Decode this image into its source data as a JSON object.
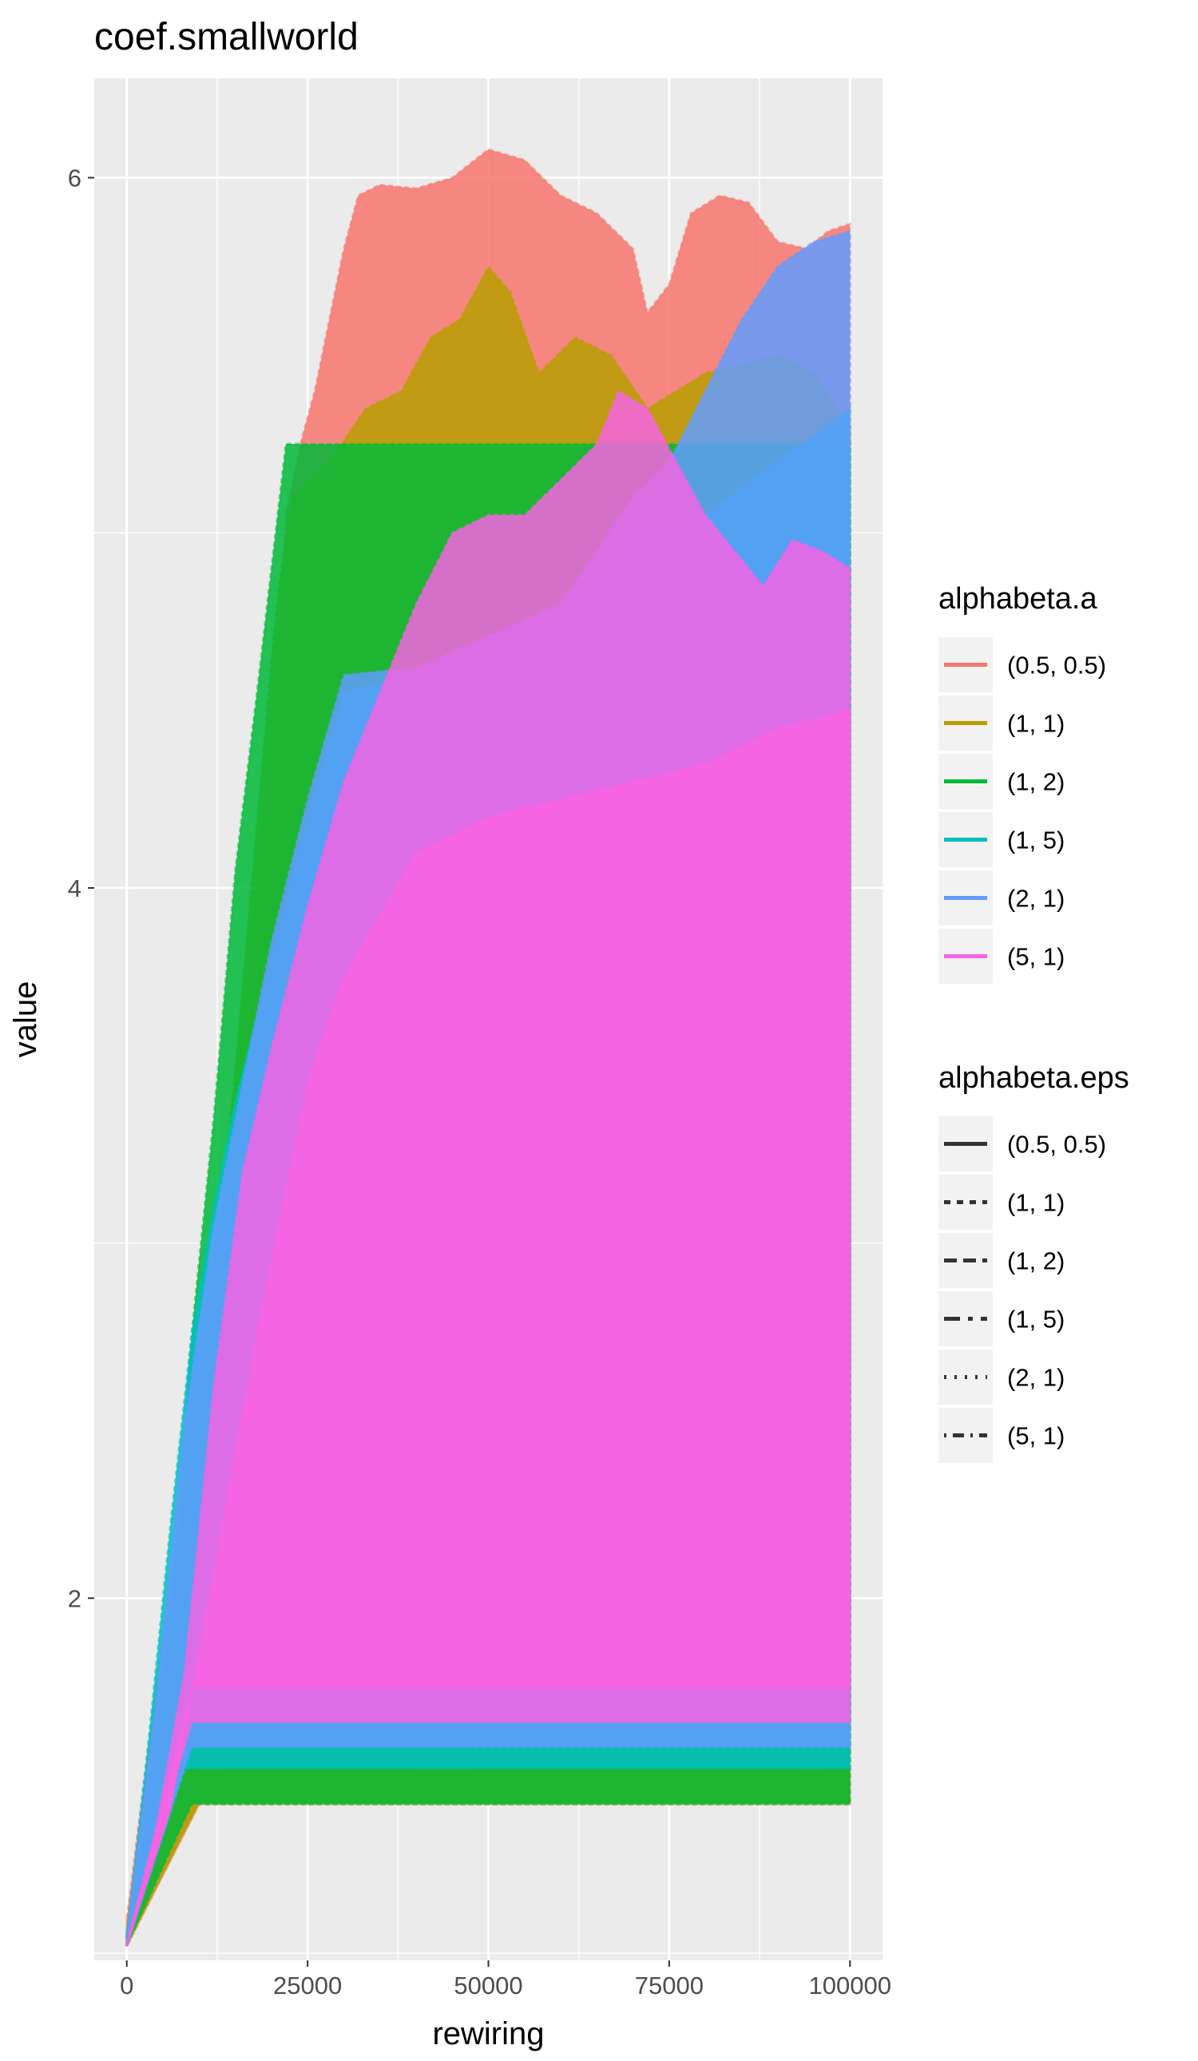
{
  "chart_data": {
    "type": "area",
    "title": "coef.smallworld",
    "xlabel": "rewiring",
    "ylabel": "value",
    "xlim": [
      -4500,
      104500
    ],
    "ylim": [
      0.98,
      6.28
    ],
    "x_ticks": [
      0,
      25000,
      50000,
      75000,
      100000
    ],
    "x_tick_labels": [
      "0",
      "25000",
      "50000",
      "75000",
      "100000"
    ],
    "y_ticks": [
      2,
      4,
      6
    ],
    "y_tick_labels": [
      "2",
      "4",
      "6"
    ],
    "grid": true,
    "legend_position": "right",
    "legends": [
      {
        "title": "alphabeta.a",
        "kind": "color",
        "entries": [
          {
            "label": "(0.5, 0.5)",
            "color": "#F8766D"
          },
          {
            "label": "(1, 1)",
            "color": "#B79F00"
          },
          {
            "label": "(1, 2)",
            "color": "#00BA38"
          },
          {
            "label": "(1, 5)",
            "color": "#00BFC4"
          },
          {
            "label": "(2, 1)",
            "color": "#619CFF"
          },
          {
            "label": "(5, 1)",
            "color": "#F564E3"
          }
        ]
      },
      {
        "title": "alphabeta.eps",
        "kind": "linetype",
        "entries": [
          {
            "label": "(0.5, 0.5)",
            "dash": "solid"
          },
          {
            "label": "(1, 1)",
            "dash": "8,8"
          },
          {
            "label": "(1, 2)",
            "dash": "16,8"
          },
          {
            "label": "(1, 5)",
            "dash": "20,10,6,10"
          },
          {
            "label": "(2, 1)",
            "dash": "3,10"
          },
          {
            "label": "(5, 1)",
            "dash": "3,8,14,8"
          }
        ]
      }
    ],
    "series": [
      {
        "color": "#F8766D",
        "opacity": 0.85,
        "upper": [
          [
            0,
            1.1
          ],
          [
            5000,
            1.9
          ],
          [
            10000,
            2.6
          ],
          [
            15000,
            3.4
          ],
          [
            20000,
            4.4
          ],
          [
            22000,
            5.05
          ],
          [
            24000,
            5.25
          ],
          [
            26000,
            5.4
          ],
          [
            28000,
            5.6
          ],
          [
            30000,
            5.8
          ],
          [
            32000,
            5.95
          ],
          [
            35000,
            5.98
          ],
          [
            40000,
            5.97
          ],
          [
            45000,
            6.0
          ],
          [
            50000,
            6.08
          ],
          [
            55000,
            6.05
          ],
          [
            60000,
            5.95
          ],
          [
            65000,
            5.9
          ],
          [
            70000,
            5.8
          ],
          [
            72000,
            5.62
          ],
          [
            75000,
            5.7
          ],
          [
            78000,
            5.9
          ],
          [
            82000,
            5.95
          ],
          [
            86000,
            5.93
          ],
          [
            90000,
            5.82
          ],
          [
            94000,
            5.8
          ],
          [
            97000,
            5.85
          ],
          [
            100000,
            5.87
          ]
        ],
        "lower": [
          [
            0,
            1.02
          ],
          [
            10000,
            1.42
          ],
          [
            100000,
            1.42
          ]
        ]
      },
      {
        "color": "#B79F00",
        "opacity": 0.85,
        "upper": [
          [
            0,
            1.08
          ],
          [
            10000,
            2.4
          ],
          [
            15000,
            3.5
          ],
          [
            20000,
            4.65
          ],
          [
            21000,
            4.85
          ],
          [
            23000,
            5.1
          ],
          [
            28000,
            5.2
          ],
          [
            33000,
            5.35
          ],
          [
            38000,
            5.4
          ],
          [
            42000,
            5.55
          ],
          [
            46000,
            5.6
          ],
          [
            50000,
            5.75
          ],
          [
            53000,
            5.68
          ],
          [
            57000,
            5.45
          ],
          [
            62000,
            5.55
          ],
          [
            67000,
            5.5
          ],
          [
            72000,
            5.35
          ],
          [
            76000,
            5.4
          ],
          [
            80000,
            5.45
          ],
          [
            85000,
            5.47
          ],
          [
            90000,
            5.5
          ],
          [
            95000,
            5.45
          ],
          [
            100000,
            5.3
          ]
        ],
        "lower": [
          [
            0,
            1.02
          ],
          [
            10000,
            1.42
          ],
          [
            100000,
            1.42
          ]
        ]
      },
      {
        "color": "#00BA38",
        "opacity": 0.85,
        "upper": [
          [
            0,
            1.05
          ],
          [
            3000,
            1.4
          ],
          [
            6000,
            1.95
          ],
          [
            9000,
            2.75
          ],
          [
            12000,
            3.35
          ],
          [
            15000,
            4.05
          ],
          [
            18000,
            4.55
          ],
          [
            22000,
            5.25
          ],
          [
            100000,
            5.25
          ]
        ],
        "lower": [
          [
            0,
            1.02
          ],
          [
            9000,
            1.42
          ],
          [
            100000,
            1.42
          ]
        ]
      },
      {
        "color": "#00BFC4",
        "opacity": 0.85,
        "upper": [
          [
            0,
            1.05
          ],
          [
            3000,
            1.6
          ],
          [
            6000,
            2.2
          ],
          [
            9000,
            2.75
          ],
          [
            12000,
            3.1
          ],
          [
            15000,
            3.4
          ],
          [
            20000,
            3.8
          ],
          [
            25000,
            4.2
          ],
          [
            30000,
            4.55
          ],
          [
            40000,
            4.6
          ],
          [
            60000,
            4.75
          ],
          [
            70000,
            5.0
          ],
          [
            80000,
            5.05
          ],
          [
            90000,
            5.2
          ],
          [
            100000,
            5.35
          ]
        ],
        "lower": [
          [
            0,
            1.02
          ],
          [
            8000,
            1.52
          ],
          [
            100000,
            1.52
          ]
        ]
      },
      {
        "color": "#619CFF",
        "opacity": 0.85,
        "upper": [
          [
            0,
            1.06
          ],
          [
            4000,
            1.7
          ],
          [
            8000,
            2.5
          ],
          [
            12000,
            3.05
          ],
          [
            16000,
            3.45
          ],
          [
            20000,
            3.85
          ],
          [
            25000,
            4.25
          ],
          [
            30000,
            4.6
          ],
          [
            40000,
            4.62
          ],
          [
            60000,
            4.8
          ],
          [
            70000,
            5.1
          ],
          [
            75000,
            5.2
          ],
          [
            80000,
            5.4
          ],
          [
            85000,
            5.6
          ],
          [
            90000,
            5.75
          ],
          [
            95000,
            5.82
          ],
          [
            100000,
            5.85
          ]
        ],
        "lower": [
          [
            0,
            1.02
          ],
          [
            9000,
            1.58
          ],
          [
            100000,
            1.58
          ]
        ]
      },
      {
        "color": "#F564E3",
        "opacity": 0.85,
        "upper": [
          [
            0,
            1.03
          ],
          [
            4000,
            1.35
          ],
          [
            8000,
            1.8
          ],
          [
            12000,
            2.6
          ],
          [
            16000,
            3.2
          ],
          [
            20000,
            3.55
          ],
          [
            25000,
            3.95
          ],
          [
            30000,
            4.3
          ],
          [
            35000,
            4.55
          ],
          [
            40000,
            4.8
          ],
          [
            45000,
            5.0
          ],
          [
            50000,
            5.05
          ],
          [
            55000,
            5.05
          ],
          [
            60000,
            5.15
          ],
          [
            65000,
            5.25
          ],
          [
            68000,
            5.4
          ],
          [
            72000,
            5.35
          ],
          [
            76000,
            5.2
          ],
          [
            80000,
            5.05
          ],
          [
            84000,
            4.95
          ],
          [
            88000,
            4.85
          ],
          [
            92000,
            4.98
          ],
          [
            96000,
            4.95
          ],
          [
            100000,
            4.9
          ]
        ],
        "lower": [
          [
            0,
            1.02
          ],
          [
            9000,
            1.65
          ],
          [
            100000,
            1.65
          ]
        ]
      },
      {
        "color": "#F564E3",
        "opacity": 1.0,
        "upper": [
          [
            0,
            1.02
          ],
          [
            6000,
            1.4
          ],
          [
            10000,
            1.85
          ],
          [
            14000,
            2.3
          ],
          [
            18000,
            2.75
          ],
          [
            25000,
            3.45
          ],
          [
            30000,
            3.75
          ],
          [
            40000,
            4.1
          ],
          [
            50000,
            4.2
          ],
          [
            60000,
            4.25
          ],
          [
            70000,
            4.3
          ],
          [
            80000,
            4.35
          ],
          [
            90000,
            4.45
          ],
          [
            100000,
            4.5
          ]
        ],
        "lower": [
          [
            0,
            1.02
          ],
          [
            9000,
            1.75
          ],
          [
            100000,
            1.75
          ]
        ]
      }
    ]
  }
}
